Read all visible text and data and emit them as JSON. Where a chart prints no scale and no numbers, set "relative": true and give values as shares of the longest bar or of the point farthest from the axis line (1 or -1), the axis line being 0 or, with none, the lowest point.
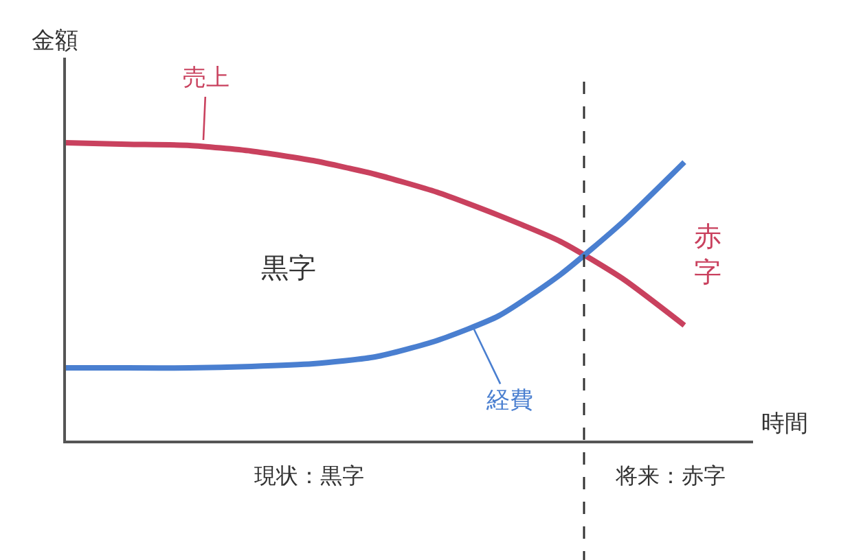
{
  "chart_data": {
    "type": "line",
    "relative": true,
    "xlabel": "時間",
    "ylabel": "金額",
    "categories": [
      null,
      null,
      null,
      null,
      null,
      null,
      null,
      null,
      null,
      null,
      null
    ],
    "series": [
      {
        "name": "売上",
        "color": "#c9415e",
        "values": [
          1,
          0.995,
          0.991,
          0.972,
          0.94,
          0.894,
          0.834,
          0.756,
          0.668,
          0.544,
          0.387
        ]
      },
      {
        "name": "経費",
        "color": "#4a7fd0",
        "values": [
          0.244,
          0.244,
          0.244,
          0.249,
          0.258,
          0.281,
          0.336,
          0.419,
          0.558,
          0.733,
          0.935
        ]
      }
    ],
    "annotations": [
      "黒字",
      "赤字",
      "現状：黒字",
      "将来：赤字"
    ],
    "legend": false,
    "marker": "none",
    "line_style": "solid"
  }
}
